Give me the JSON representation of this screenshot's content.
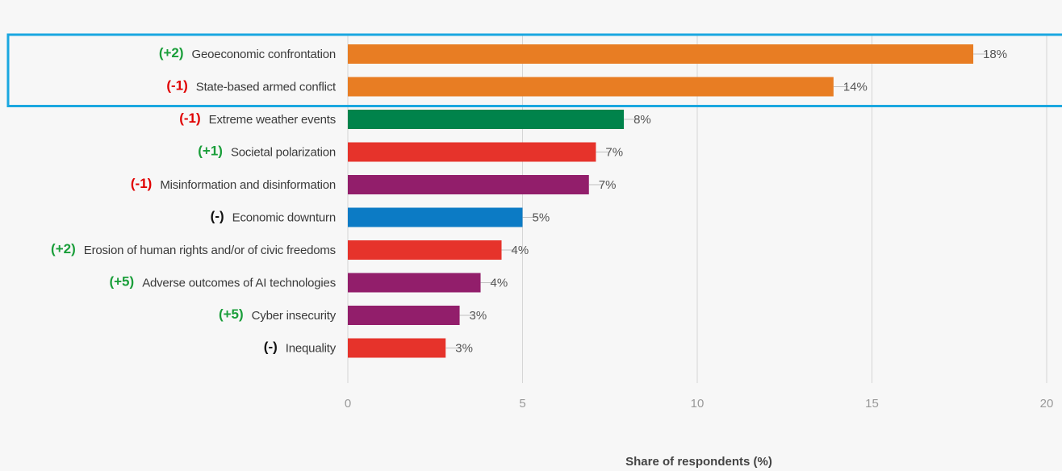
{
  "chart_data": {
    "type": "bar",
    "orientation": "horizontal",
    "categories": [
      "Geoeconomic confrontation",
      "State-based armed conflict",
      "Extreme weather events",
      "Societal polarization",
      "Misinformation and disinformation",
      "Economic downturn",
      "Erosion of human rights and/or of civic freedoms",
      "Adverse outcomes of AI technologies",
      "Cyber insecurity",
      "Inequality"
    ],
    "values": [
      17.9,
      13.9,
      7.9,
      7.1,
      6.9,
      5.0,
      4.4,
      3.8,
      3.2,
      2.8
    ],
    "value_labels": [
      "18%",
      "14%",
      "8%",
      "7%",
      "7%",
      "5%",
      "4%",
      "4%",
      "3%",
      "3%"
    ],
    "change_labels": [
      "(+2)",
      "(-1)",
      "(-1)",
      "(+1)",
      "(-1)",
      "(-)",
      "(+2)",
      "(+5)",
      "(+5)",
      "(-)"
    ],
    "change_colors": [
      "#1a9e3a",
      "#e00000",
      "#e00000",
      "#1a9e3a",
      "#e00000",
      "#111111",
      "#1a9e3a",
      "#1a9e3a",
      "#1a9e3a",
      "#111111"
    ],
    "bar_colors": [
      "#e87d23",
      "#e87d23",
      "#00834b",
      "#e6332b",
      "#921e6b",
      "#0c7bc5",
      "#e6332b",
      "#921e6b",
      "#921e6b",
      "#e6332b"
    ],
    "xlim": [
      0,
      20
    ],
    "xticks": [
      "0",
      "5",
      "10",
      "15",
      "20"
    ],
    "xlabel": "Share of respondents (%)",
    "grid": true,
    "highlight": {
      "rows": [
        0,
        1
      ],
      "color": "#1aa7e0"
    }
  }
}
